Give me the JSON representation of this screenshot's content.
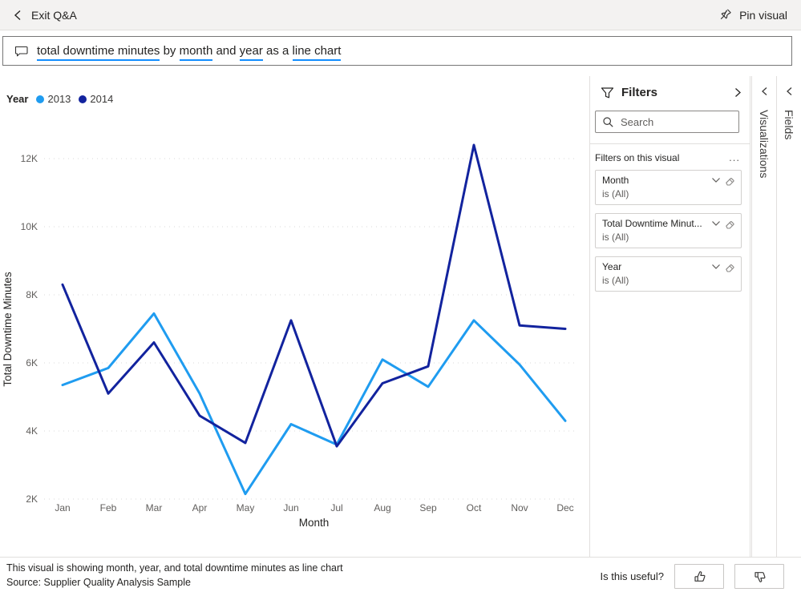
{
  "colors": {
    "accent": "#118dff",
    "series_2013": "#1f9cf0",
    "series_2014": "#12239e",
    "gridline": "#d9d9d9",
    "axis_text": "#605e5c",
    "dark_text": "#252423"
  },
  "top_bar": {
    "exit_label": "Exit Q&A",
    "pin_label": "Pin visual"
  },
  "question": {
    "segments": [
      {
        "text": "total downtime minutes",
        "underline": true
      },
      {
        "text": " by ",
        "underline": false
      },
      {
        "text": "month",
        "underline": true
      },
      {
        "text": " and ",
        "underline": false
      },
      {
        "text": "year",
        "underline": true
      },
      {
        "text": " as a ",
        "underline": false
      },
      {
        "text": "line chart",
        "underline": true
      }
    ]
  },
  "chart_data": {
    "type": "line",
    "categories": [
      "Jan",
      "Feb",
      "Mar",
      "Apr",
      "May",
      "Jun",
      "Jul",
      "Aug",
      "Sep",
      "Oct",
      "Nov",
      "Dec"
    ],
    "series": [
      {
        "name": "2013",
        "color": "#1f9cf0",
        "values": [
          5350,
          5850,
          7450,
          5100,
          2150,
          4200,
          3600,
          6100,
          5300,
          7250,
          5950,
          4300
        ]
      },
      {
        "name": "2014",
        "color": "#12239e",
        "values": [
          8300,
          5100,
          6600,
          4450,
          3650,
          7250,
          3550,
          5400,
          5900,
          12400,
          7100,
          7000
        ]
      }
    ],
    "legend_title": "Year",
    "xlabel": "Month",
    "ylabel": "Total Downtime Minutes",
    "ylim": [
      2000,
      12000
    ],
    "yticks": [
      2000,
      4000,
      6000,
      8000,
      10000,
      12000
    ],
    "ytick_labels": [
      "2K",
      "4K",
      "6K",
      "8K",
      "10K",
      "12K"
    ],
    "grid": "dotted horizontal"
  },
  "filters_panel": {
    "title": "Filters",
    "search_placeholder": "Search",
    "section_label": "Filters on this visual",
    "more_label": "...",
    "cards": [
      {
        "name": "Month",
        "condition": "is (All)"
      },
      {
        "name": "Total Downtime Minut...",
        "condition": "is (All)"
      },
      {
        "name": "Year",
        "condition": "is (All)"
      }
    ]
  },
  "side_strips": {
    "visualizations": "Visualizations",
    "fields": "Fields"
  },
  "footer": {
    "line1": "This visual is showing month, year, and total downtime minutes as line chart",
    "line2": "Source: Supplier Quality Analysis Sample",
    "useful_label": "Is this useful?"
  }
}
